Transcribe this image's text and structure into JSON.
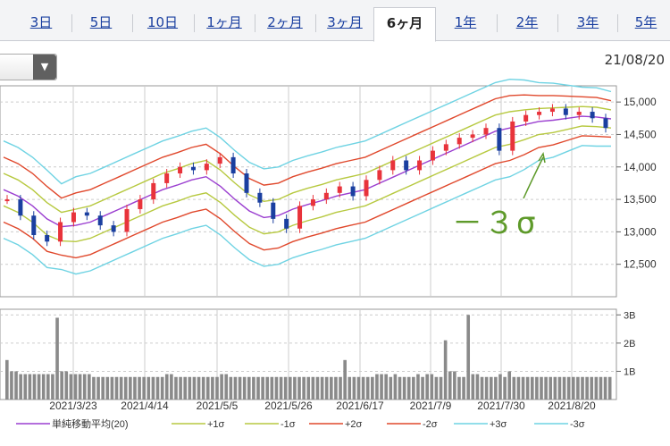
{
  "tabs": [
    "3日",
    "5日",
    "10日",
    "1ヶ月",
    "2ヶ月",
    "3ヶ月",
    "6ヶ月",
    "1年",
    "2年",
    "3年",
    "5年"
  ],
  "active_tab": "6ヶ月",
  "date_label": "21/08/20",
  "dropdown_icon": "chevron-down-icon",
  "annotation": "－３σ",
  "colors": {
    "sma": "#9b3fd0",
    "p1": "#b7c940",
    "m1": "#b7c940",
    "p2": "#e0482c",
    "m2": "#e0482c",
    "p3": "#6fd3e3",
    "m3": "#6fd3e3",
    "up": "#e8333b",
    "down": "#1a3fa0",
    "volume": "#8a8a8a",
    "annotation": "#5e9a2a"
  },
  "chart_data": {
    "type": "line",
    "y_ticks": [
      "15,000",
      "14,500",
      "14,000",
      "13,500",
      "13,000",
      "12,500"
    ],
    "ylim": [
      12000,
      15250
    ],
    "x_ticks": [
      "2021/3/23",
      "2021/4/14",
      "2021/5/5",
      "2021/5/26",
      "2021/6/17",
      "2021/7/9",
      "2021/7/30",
      "2021/8/20"
    ],
    "volume_ticks": [
      "3B",
      "2B",
      "1B"
    ],
    "volume_ylim": [
      0,
      3.2
    ],
    "legend": [
      "単純移動平均(20)",
      "+1σ",
      "-1σ",
      "+2σ",
      "-2σ",
      "+3σ",
      "-3σ"
    ],
    "series": [
      {
        "name": "単純移動平均(20)",
        "values": [
          13650,
          13550,
          13400,
          13200,
          13080,
          13100,
          13150,
          13250,
          13350,
          13450,
          13550,
          13650,
          13720,
          13800,
          13850,
          13700,
          13500,
          13320,
          13220,
          13250,
          13350,
          13420,
          13480,
          13550,
          13600,
          13650,
          13750,
          13850,
          13950,
          14050,
          14150,
          14250,
          14350,
          14450,
          14550,
          14600,
          14650,
          14700,
          14720,
          14750,
          14780,
          14770,
          14740
        ]
      },
      {
        "name": "+1σ",
        "values": [
          13900,
          13800,
          13650,
          13450,
          13300,
          13350,
          13400,
          13500,
          13600,
          13700,
          13800,
          13900,
          13970,
          14050,
          14100,
          13950,
          13750,
          13570,
          13470,
          13500,
          13600,
          13670,
          13730,
          13800,
          13850,
          13900,
          14000,
          14100,
          14200,
          14300,
          14400,
          14500,
          14600,
          14700,
          14800,
          14850,
          14880,
          14900,
          14910,
          14920,
          14930,
          14920,
          14880
        ]
      },
      {
        "name": "-1σ",
        "values": [
          13400,
          13300,
          13150,
          12950,
          12860,
          12850,
          12900,
          13000,
          13100,
          13200,
          13300,
          13400,
          13470,
          13550,
          13600,
          13450,
          13250,
          13070,
          12970,
          13000,
          13100,
          13170,
          13230,
          13300,
          13350,
          13400,
          13500,
          13600,
          13700,
          13800,
          13900,
          14000,
          14100,
          14200,
          14300,
          14350,
          14420,
          14500,
          14530,
          14580,
          14630,
          14620,
          14600
        ]
      },
      {
        "name": "+2σ",
        "values": [
          14150,
          14050,
          13900,
          13700,
          13520,
          13600,
          13650,
          13750,
          13850,
          13950,
          14050,
          14150,
          14220,
          14300,
          14350,
          14200,
          14000,
          13820,
          13720,
          13750,
          13850,
          13920,
          13980,
          14050,
          14100,
          14150,
          14250,
          14350,
          14450,
          14550,
          14650,
          14750,
          14850,
          14950,
          15050,
          15100,
          15110,
          15100,
          15100,
          15090,
          15080,
          15070,
          15020
        ]
      },
      {
        "name": "-2σ",
        "values": [
          13150,
          13050,
          12900,
          12700,
          12640,
          12600,
          12650,
          12750,
          12850,
          12950,
          13050,
          13150,
          13220,
          13300,
          13350,
          13200,
          13000,
          12820,
          12720,
          12750,
          12850,
          12920,
          12980,
          13050,
          13100,
          13150,
          13250,
          13350,
          13450,
          13550,
          13650,
          13750,
          13850,
          13950,
          14050,
          14100,
          14190,
          14300,
          14340,
          14410,
          14480,
          14470,
          14460
        ]
      },
      {
        "name": "+3σ",
        "values": [
          14400,
          14300,
          14150,
          13950,
          13740,
          13850,
          13900,
          14000,
          14100,
          14200,
          14300,
          14400,
          14470,
          14550,
          14600,
          14450,
          14250,
          14070,
          13970,
          14000,
          14100,
          14170,
          14230,
          14300,
          14350,
          14400,
          14500,
          14600,
          14700,
          14800,
          14900,
          15000,
          15100,
          15200,
          15300,
          15350,
          15340,
          15300,
          15290,
          15260,
          15230,
          15220,
          15160
        ]
      },
      {
        "name": "-3σ",
        "values": [
          12900,
          12800,
          12650,
          12450,
          12420,
          12350,
          12400,
          12500,
          12600,
          12700,
          12800,
          12900,
          12970,
          13050,
          13100,
          12950,
          12750,
          12570,
          12470,
          12500,
          12600,
          12670,
          12730,
          12800,
          12850,
          12900,
          13000,
          13100,
          13200,
          13300,
          13400,
          13500,
          13600,
          13700,
          13800,
          13850,
          13960,
          14100,
          14150,
          14240,
          14330,
          14320,
          14320
        ]
      }
    ],
    "candles": [
      13500,
      13250,
      12950,
      12850,
      13150,
      13300,
      13250,
      13100,
      13000,
      13350,
      13500,
      13750,
      13900,
      14000,
      13950,
      14050,
      14150,
      13900,
      13600,
      13450,
      13200,
      13050,
      13400,
      13500,
      13600,
      13700,
      13550,
      13800,
      13950,
      14100,
      13950,
      14100,
      14250,
      14350,
      14450,
      14500,
      14600,
      14250,
      14700,
      14800,
      14850,
      14900,
      14800,
      14850,
      14750,
      14600
    ]
  }
}
